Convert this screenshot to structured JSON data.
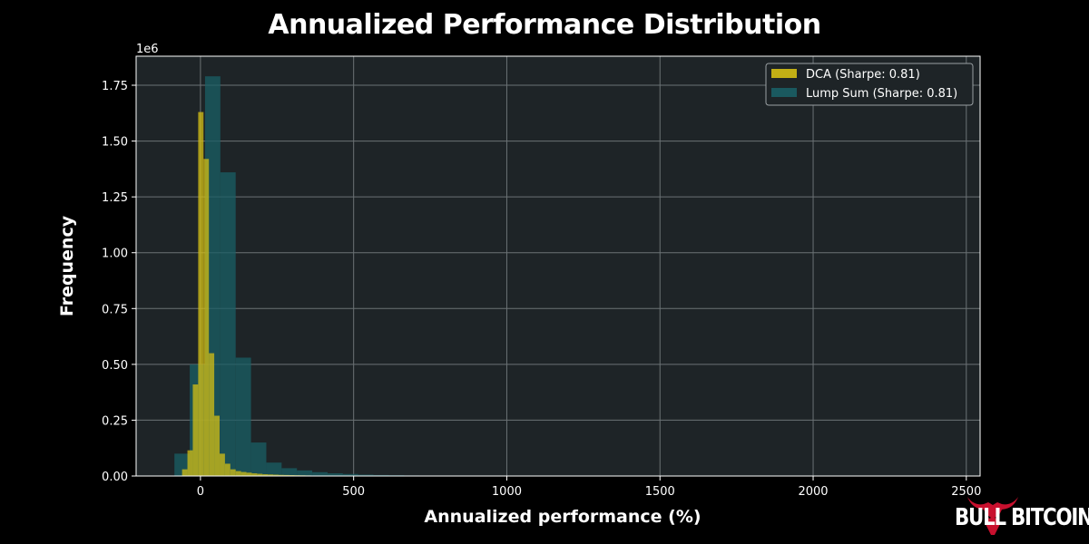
{
  "chart_data": {
    "type": "histogram",
    "title": "Annualized Performance Distribution",
    "xlabel": "Annualized performance (%)",
    "ylabel": "Frequency",
    "y_scale_label": "1e6",
    "xlim": [
      -210,
      2545
    ],
    "ylim": [
      0,
      1880000
    ],
    "xticks": [
      0,
      500,
      1000,
      1500,
      2000,
      2500
    ],
    "yticks": [
      0,
      250000,
      500000,
      750000,
      1000000,
      1250000,
      1500000,
      1750000
    ],
    "ytick_labels": [
      "0.00",
      "0.25",
      "0.50",
      "0.75",
      "1.00",
      "1.25",
      "1.50",
      "1.75"
    ],
    "grid": true,
    "legend_position": "top-right",
    "series": [
      {
        "name": "DCA (Sharpe: 0.81)",
        "color": "#d4bf14",
        "bin_start": -60,
        "bin_width": 17.5,
        "values": [
          30000,
          115000,
          410000,
          1630000,
          1420000,
          550000,
          270000,
          100000,
          55000,
          30000,
          22000,
          18000,
          15000,
          12000,
          10000,
          8000,
          7000,
          6000,
          5000,
          4500,
          4000,
          3500,
          3000,
          2500,
          2000,
          1800,
          1600,
          1400,
          1200,
          1000,
          900,
          800,
          700,
          600,
          500,
          400,
          300
        ]
      },
      {
        "name": "Lump Sum (Sharpe: 0.81)",
        "color": "#1a5f66",
        "bin_start": -85,
        "bin_width": 50,
        "values": [
          100000,
          500000,
          1790000,
          1360000,
          530000,
          150000,
          60000,
          35000,
          25000,
          17000,
          12000,
          9000,
          6000,
          4500,
          3500,
          2500,
          1800,
          1300,
          900,
          700,
          500,
          400,
          300
        ]
      }
    ]
  },
  "brand": {
    "name": "BULL BITCOIN",
    "logo": "bull-head-icon",
    "logo_color": "#c8102e"
  }
}
